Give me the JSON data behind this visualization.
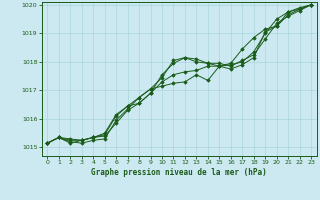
{
  "title": "Graphe pression niveau de la mer (hPa)",
  "background_color": "#cce8f0",
  "grid_color": "#aad4dc",
  "line_color": "#1a5c1a",
  "xlim": [
    -0.5,
    23.5
  ],
  "ylim": [
    1014.7,
    1020.1
  ],
  "yticks": [
    1015,
    1016,
    1017,
    1018,
    1019,
    1020
  ],
  "xticks": [
    0,
    1,
    2,
    3,
    4,
    5,
    6,
    7,
    8,
    9,
    10,
    11,
    12,
    13,
    14,
    15,
    16,
    17,
    18,
    19,
    20,
    21,
    22,
    23
  ],
  "series": [
    [
      1015.15,
      1015.35,
      1015.3,
      1015.25,
      1015.35,
      1015.4,
      1015.85,
      1016.3,
      1016.55,
      1016.9,
      1017.3,
      1017.55,
      1017.65,
      1017.7,
      1017.85,
      1017.85,
      1017.9,
      1018.0,
      1018.35,
      1019.0,
      1019.5,
      1019.75,
      1019.9,
      1020.0
    ],
    [
      1015.15,
      1015.35,
      1015.2,
      1015.15,
      1015.25,
      1015.3,
      1015.95,
      1016.35,
      1016.75,
      1017.05,
      1017.45,
      1018.05,
      1018.15,
      1018.0,
      1017.95,
      1017.95,
      1017.85,
      1018.05,
      1018.25,
      1018.8,
      1019.35,
      1019.6,
      1019.8,
      1020.0
    ],
    [
      1015.15,
      1015.35,
      1015.15,
      1015.25,
      1015.35,
      1015.5,
      1016.15,
      1016.45,
      1016.55,
      1016.9,
      1017.55,
      1017.95,
      1018.15,
      1018.1,
      1017.95,
      1017.85,
      1017.75,
      1017.9,
      1018.15,
      1019.05,
      1019.25,
      1019.65,
      1019.85,
      1020.0
    ],
    [
      1015.15,
      1015.35,
      1015.25,
      1015.25,
      1015.35,
      1015.45,
      1016.1,
      1016.45,
      1016.75,
      1017.05,
      1017.15,
      1017.25,
      1017.3,
      1017.55,
      1017.35,
      1017.85,
      1017.95,
      1018.45,
      1018.85,
      1019.15,
      1019.25,
      1019.75,
      1019.85,
      1020.0
    ]
  ]
}
